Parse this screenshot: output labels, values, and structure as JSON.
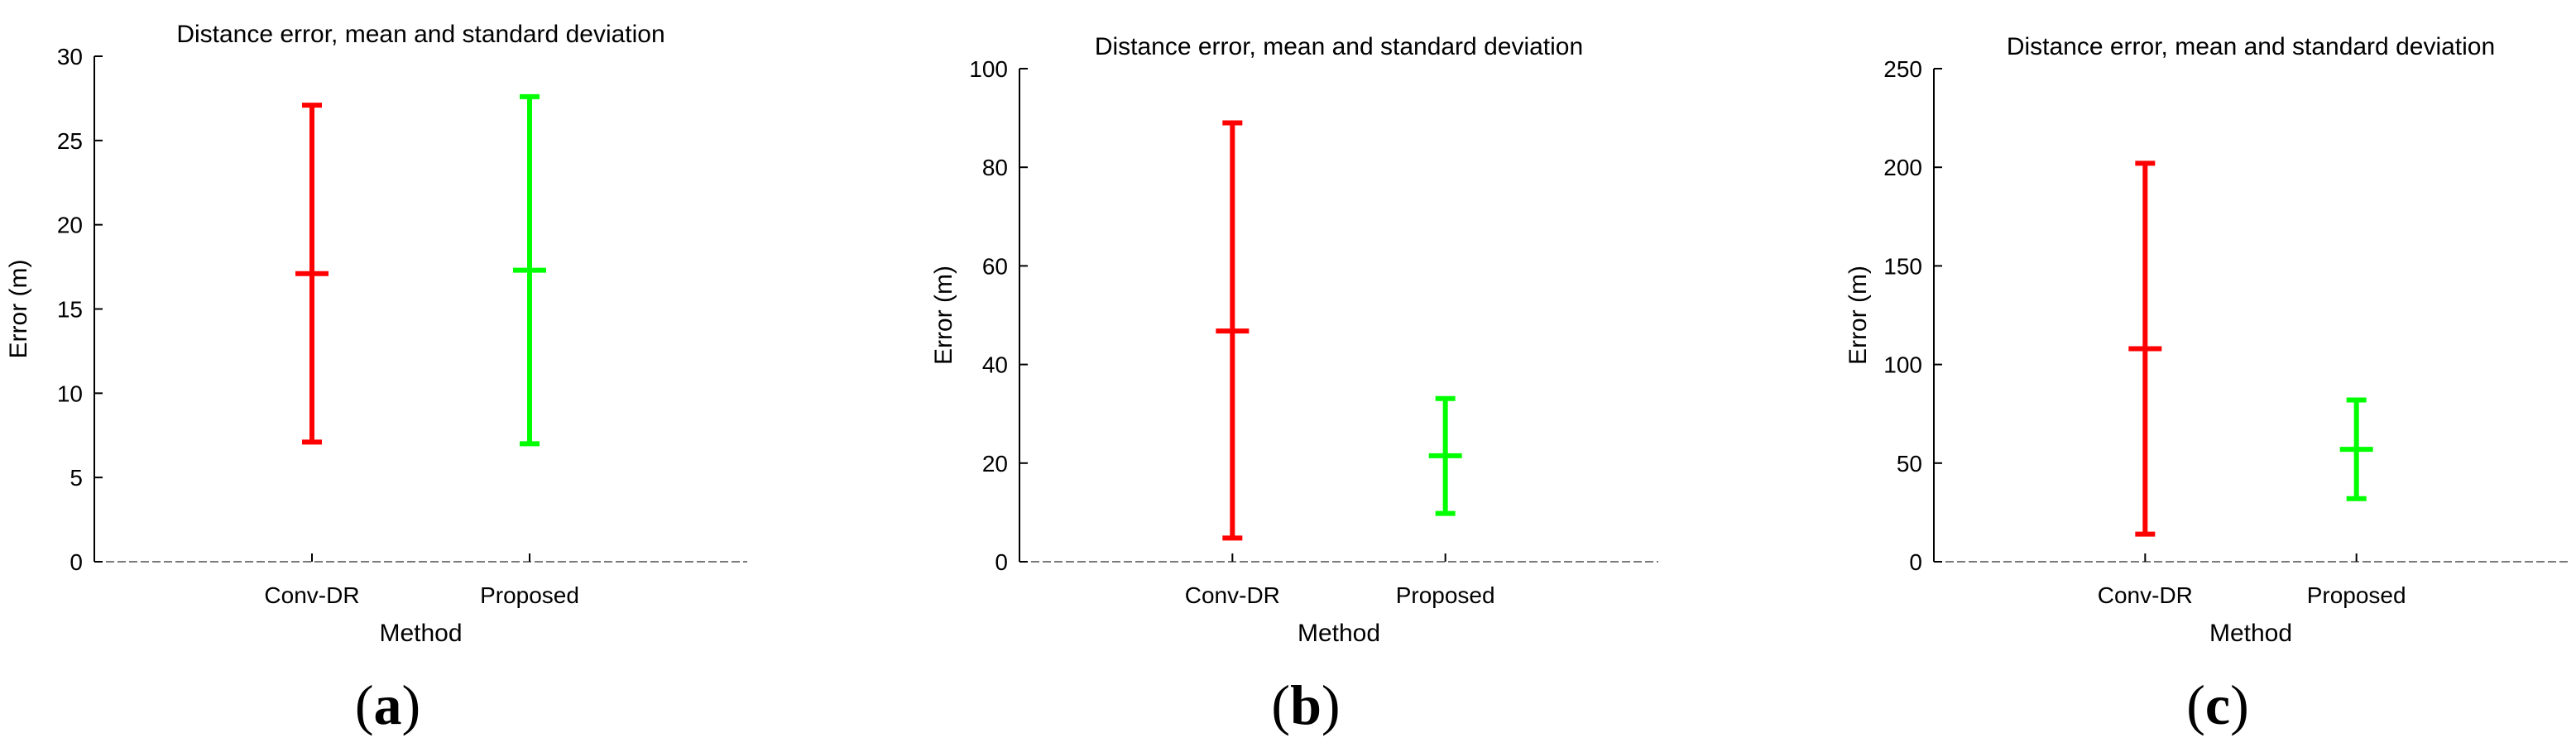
{
  "chart_data": [
    {
      "type": "errorbar",
      "title": "Distance error, mean and standard deviation",
      "xlabel": "Method",
      "ylabel": "Error (m)",
      "ylim": [
        0,
        30
      ],
      "yticks": [
        0,
        5,
        10,
        15,
        20,
        25,
        30
      ],
      "categories": [
        "Conv-DR",
        "Proposed"
      ],
      "series": [
        {
          "category": "Conv-DR",
          "mean": 17.1,
          "lower": 7.1,
          "upper": 27.1,
          "color": "#ff0000"
        },
        {
          "category": "Proposed",
          "mean": 17.3,
          "lower": 7.0,
          "upper": 27.6,
          "color": "#00ff00"
        }
      ],
      "grid": false,
      "caption": {
        "open": "(",
        "letter": "a",
        "close": ")"
      }
    },
    {
      "type": "errorbar",
      "title": "Distance error, mean and standard deviation",
      "xlabel": "Method",
      "ylabel": "Error (m)",
      "ylim": [
        0,
        100
      ],
      "yticks": [
        0,
        20,
        40,
        60,
        80,
        100
      ],
      "categories": [
        "Conv-DR",
        "Proposed"
      ],
      "series": [
        {
          "category": "Conv-DR",
          "mean": 46.8,
          "lower": 4.8,
          "upper": 89.0,
          "color": "#ff0000"
        },
        {
          "category": "Proposed",
          "mean": 21.5,
          "lower": 9.8,
          "upper": 33.1,
          "color": "#00ff00"
        }
      ],
      "grid": false,
      "caption": {
        "open": "(",
        "letter": "b",
        "close": ")"
      }
    },
    {
      "type": "errorbar",
      "title": "Distance error, mean and standard deviation",
      "xlabel": "Method",
      "ylabel": "Error (m)",
      "ylim": [
        0,
        250
      ],
      "yticks": [
        0,
        50,
        100,
        150,
        200,
        250
      ],
      "categories": [
        "Conv-DR",
        "Proposed"
      ],
      "series": [
        {
          "category": "Conv-DR",
          "mean": 108,
          "lower": 14,
          "upper": 202,
          "color": "#ff0000"
        },
        {
          "category": "Proposed",
          "mean": 57,
          "lower": 32,
          "upper": 82,
          "color": "#00ff00"
        }
      ],
      "grid": false,
      "caption": {
        "open": "(",
        "letter": "c",
        "close": ")"
      }
    }
  ]
}
